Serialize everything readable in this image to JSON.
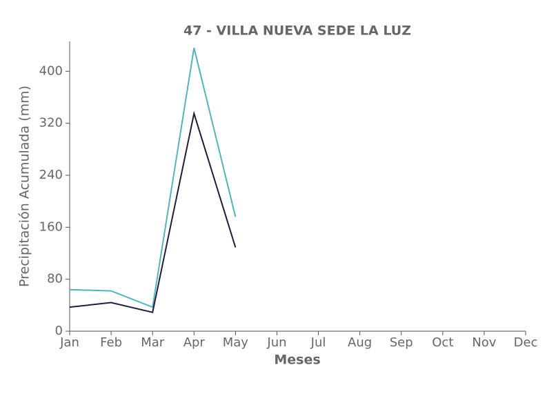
{
  "chart_data": {
    "type": "line",
    "title": "47 - VILLA NUEVA SEDE LA LUZ",
    "x_label": "Meses",
    "y_label": "Precipitación Acumulada (mm)",
    "categories": [
      "Jan",
      "Feb",
      "Mar",
      "Apr",
      "May",
      "Jun",
      "Jul",
      "Aug",
      "Sep",
      "Oct",
      "Nov",
      "Dec"
    ],
    "series": [
      {
        "color": "#52b3bd",
        "values": [
          64,
          62,
          37,
          436,
          176,
          null,
          null,
          null,
          null,
          null,
          null,
          null
        ]
      },
      {
        "color": "#1f1d3a",
        "values": [
          37,
          44,
          29,
          335,
          129,
          null,
          null,
          null,
          null,
          null,
          null,
          null
        ]
      }
    ],
    "ylim": [
      0,
      446
    ],
    "yticks": [
      0,
      80,
      160,
      240,
      320,
      400
    ],
    "grid": false
  }
}
